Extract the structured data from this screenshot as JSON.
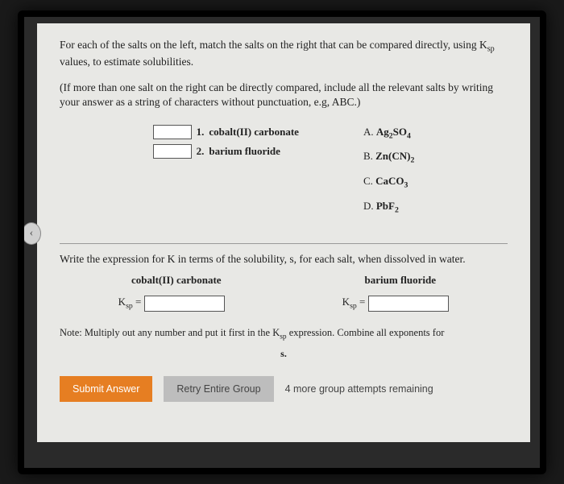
{
  "intro": {
    "p1_a": "For each of the salts on the left, match the salts on the right that can be compared directly, using K",
    "p1_sub": "sp",
    "p1_b": " values, to estimate solubilities.",
    "p2": "(If more than one salt on the right can be directly compared, include all the relevant salts by writing your answer as a string of characters without punctuation, e.g, ABC.)"
  },
  "left_items": [
    {
      "num": "1.",
      "label": "cobalt(II) carbonate"
    },
    {
      "num": "2.",
      "label": "barium fluoride"
    }
  ],
  "right_items": [
    {
      "letter": "A.",
      "f_a": "Ag",
      "f_sub1": "2",
      "f_b": "SO",
      "f_sub2": "4"
    },
    {
      "letter": "B.",
      "f_a": "Zn(CN)",
      "f_sub1": "2",
      "f_b": "",
      "f_sub2": ""
    },
    {
      "letter": "C.",
      "f_a": "CaCO",
      "f_sub1": "3",
      "f_b": "",
      "f_sub2": ""
    },
    {
      "letter": "D.",
      "f_a": "PbF",
      "f_sub1": "2",
      "f_b": "",
      "f_sub2": ""
    }
  ],
  "ksp": {
    "prompt": "Write the expression for K in terms of the solubility, s, for each salt, when dissolved in water.",
    "h1": "cobalt(II) carbonate",
    "h2": "barium fluoride",
    "label_a": "K",
    "label_sub": "sp",
    "label_b": " ="
  },
  "note": {
    "line1_a": "Note: Multiply out any number and put it first in the K",
    "line1_sub": "sp",
    "line1_b": " expression. Combine all exponents for",
    "line2": "s."
  },
  "buttons": {
    "submit": "Submit Answer",
    "retry": "Retry Entire Group",
    "attempts": "4 more group attempts remaining"
  },
  "chevron": "‹"
}
